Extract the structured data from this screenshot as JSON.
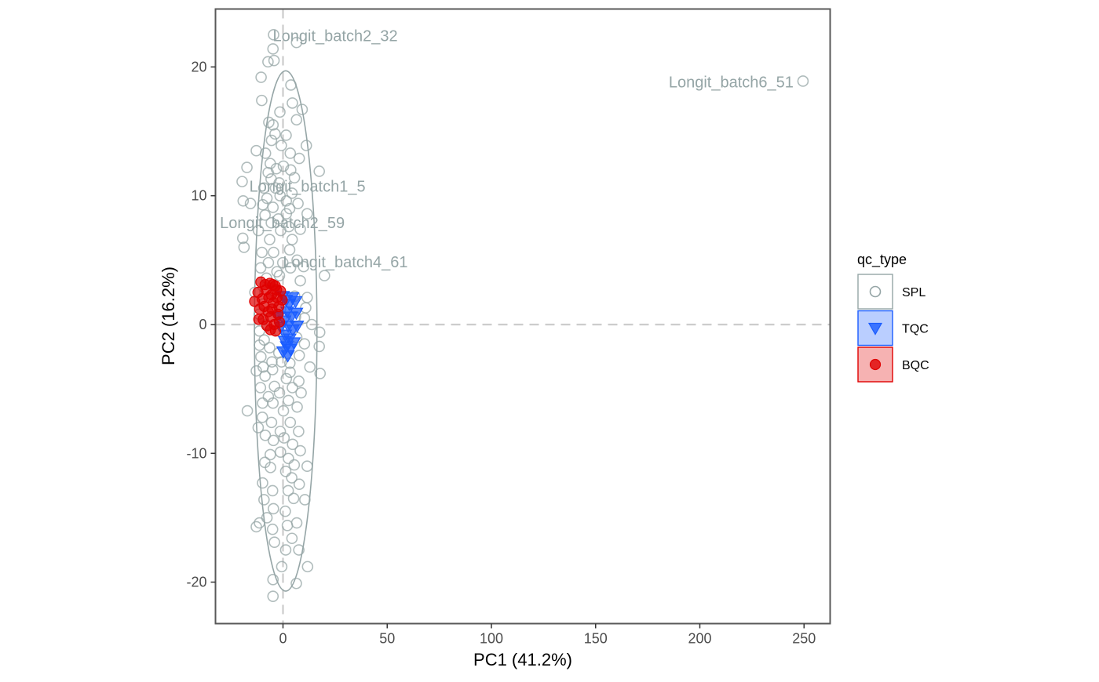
{
  "chart_data": {
    "type": "scatter",
    "title": "",
    "xlabel": "PC1 (41.2%)",
    "ylabel": "PC2 (16.2%)",
    "xlim": [
      -32.5,
      262
    ],
    "ylim": [
      -23.2,
      24.5
    ],
    "x_ticks": [
      0,
      50,
      100,
      150,
      200,
      250
    ],
    "y_ticks": [
      -20,
      -10,
      0,
      10,
      20
    ],
    "grid": false,
    "reference_lines": {
      "x": 0,
      "y": 0,
      "style": "dashed"
    },
    "legend": {
      "title": "qc_type",
      "position": "right",
      "entries": [
        {
          "label": "SPL",
          "color": "#95a5a6",
          "shape": "open-circle"
        },
        {
          "label": "TQC",
          "color": "#1a5cff",
          "shape": "triangle-down"
        },
        {
          "label": "BQC",
          "color": "#e00000",
          "shape": "filled-circle"
        }
      ]
    },
    "ellipse": {
      "group": "SPL",
      "center": [
        1.3,
        -0.5
      ],
      "semi_axes": [
        15,
        20.2
      ],
      "color": "#95a5a6"
    },
    "series": [
      {
        "name": "SPL",
        "color": "#95a5a6",
        "points": [
          [
            -4.5,
            22.5
          ],
          [
            6.5,
            21.9
          ],
          [
            -4.8,
            21.4
          ],
          [
            -7.2,
            20.4
          ],
          [
            -4.3,
            20.5
          ],
          [
            -10.5,
            19.2
          ],
          [
            3.8,
            18.6
          ],
          [
            249.5,
            18.9
          ],
          [
            -10.2,
            17.4
          ],
          [
            4.5,
            17.2
          ],
          [
            9.2,
            16.7
          ],
          [
            -1.5,
            16.5
          ],
          [
            -6.8,
            15.7
          ],
          [
            -4.8,
            15.5
          ],
          [
            6.5,
            15.9
          ],
          [
            -3.8,
            14.8
          ],
          [
            1.5,
            14.7
          ],
          [
            -5.5,
            14.3
          ],
          [
            -0.8,
            13.9
          ],
          [
            11.2,
            13.9
          ],
          [
            -12.8,
            13.5
          ],
          [
            -8.4,
            13.3
          ],
          [
            3.5,
            13.3
          ],
          [
            -6.1,
            12.5
          ],
          [
            7.8,
            12.9
          ],
          [
            -17.3,
            12.2
          ],
          [
            -7.1,
            11.8
          ],
          [
            -3.2,
            12.1
          ],
          [
            0.2,
            12.3
          ],
          [
            3.7,
            12.0
          ],
          [
            17.4,
            11.9
          ],
          [
            -5.7,
            11.3
          ],
          [
            -1.8,
            11.0
          ],
          [
            5.5,
            11.4
          ],
          [
            -19.6,
            11.1
          ],
          [
            -9.2,
            10.6
          ],
          [
            -3.6,
            10.6
          ],
          [
            4.3,
            10.2
          ],
          [
            -7.7,
            9.8
          ],
          [
            -1.4,
            10.0
          ],
          [
            1.6,
            9.6
          ],
          [
            -19.1,
            9.6
          ],
          [
            -15.6,
            9.4
          ],
          [
            -9.7,
            9.3
          ],
          [
            -4.8,
            9.1
          ],
          [
            3.2,
            9.0
          ],
          [
            7.2,
            9.4
          ],
          [
            -8.6,
            8.5
          ],
          [
            -2.2,
            8.2
          ],
          [
            1.6,
            8.6
          ],
          [
            11.6,
            8.6
          ],
          [
            -5.6,
            7.9
          ],
          [
            2.8,
            7.6
          ],
          [
            8.3,
            7.4
          ],
          [
            -11.8,
            7.3
          ],
          [
            -1.1,
            7.3
          ],
          [
            4.4,
            6.6
          ],
          [
            -19.3,
            6.7
          ],
          [
            -6.4,
            6.6
          ],
          [
            -18.7,
            6.0
          ],
          [
            -10.1,
            5.6
          ],
          [
            -4.5,
            5.6
          ],
          [
            3.2,
            5.8
          ],
          [
            -7.0,
            4.8
          ],
          [
            -0.1,
            4.8
          ],
          [
            6.8,
            5.0
          ],
          [
            -10.7,
            4.4
          ],
          [
            -2.9,
            4.1
          ],
          [
            3.6,
            4.4
          ],
          [
            9.9,
            4.5
          ],
          [
            -7.9,
            3.6
          ],
          [
            -1.7,
            3.8
          ],
          [
            19.9,
            3.8
          ],
          [
            8.3,
            3.4
          ],
          [
            -13.5,
            2.5
          ],
          [
            -4.3,
            2.6
          ],
          [
            5.6,
            2.2
          ],
          [
            11.6,
            2.1
          ],
          [
            -9.5,
            1.6
          ],
          [
            -1.2,
            1.2
          ],
          [
            10.9,
            1.3
          ],
          [
            -11.4,
            0.8
          ],
          [
            6.0,
            0.6
          ],
          [
            10.3,
            0.5
          ],
          [
            -7.9,
            0.0
          ],
          [
            13.8,
            0.0
          ],
          [
            -11.3,
            -0.5
          ],
          [
            -2.0,
            -0.5
          ],
          [
            17.6,
            -0.6
          ],
          [
            -9.0,
            -1.2
          ],
          [
            6.6,
            -1.0
          ],
          [
            -11.3,
            -1.6
          ],
          [
            10.3,
            -1.5
          ],
          [
            -6.4,
            -1.8
          ],
          [
            -2.0,
            -2.2
          ],
          [
            17.4,
            -1.7
          ],
          [
            -10.6,
            -2.5
          ],
          [
            7.8,
            -2.4
          ],
          [
            -5.3,
            -2.9
          ],
          [
            -0.7,
            -2.9
          ],
          [
            3.3,
            -3.0
          ],
          [
            -9.5,
            -3.3
          ],
          [
            12.9,
            -3.3
          ],
          [
            -12.8,
            -3.6
          ],
          [
            -5.0,
            -3.5
          ],
          [
            3.4,
            -3.7
          ],
          [
            17.8,
            -3.8
          ],
          [
            -8.6,
            -4.0
          ],
          [
            1.6,
            -4.2
          ],
          [
            7.6,
            -4.4
          ],
          [
            -4.1,
            -4.8
          ],
          [
            -10.8,
            -4.9
          ],
          [
            4.5,
            -4.9
          ],
          [
            -1.7,
            -5.3
          ],
          [
            8.7,
            -5.3
          ],
          [
            -7.0,
            -5.6
          ],
          [
            2.6,
            -5.9
          ],
          [
            -9.8,
            -6.1
          ],
          [
            -4.8,
            -6.1
          ],
          [
            6.8,
            -6.4
          ],
          [
            -17.1,
            -6.7
          ],
          [
            0.2,
            -6.7
          ],
          [
            -9.9,
            -7.2
          ],
          [
            -5.5,
            -7.6
          ],
          [
            3.5,
            -7.6
          ],
          [
            -11.9,
            -8.0
          ],
          [
            -1.3,
            -8.3
          ],
          [
            7.5,
            -8.3
          ],
          [
            -8.5,
            -8.6
          ],
          [
            0.5,
            -8.8
          ],
          [
            -4.6,
            -9.0
          ],
          [
            4.6,
            -9.3
          ],
          [
            -1.2,
            -9.9
          ],
          [
            8.3,
            -9.8
          ],
          [
            -6.1,
            -10.1
          ],
          [
            2.6,
            -10.4
          ],
          [
            -8.7,
            -10.7
          ],
          [
            5.4,
            -10.9
          ],
          [
            11.6,
            -11.0
          ],
          [
            -6.0,
            -11.1
          ],
          [
            1.3,
            -11.4
          ],
          [
            4.2,
            -11.9
          ],
          [
            -9.8,
            -12.3
          ],
          [
            7.8,
            -12.4
          ],
          [
            -5.0,
            -12.9
          ],
          [
            2.5,
            -12.9
          ],
          [
            -9.1,
            -13.6
          ],
          [
            5.1,
            -13.5
          ],
          [
            10.5,
            -13.6
          ],
          [
            -4.6,
            -14.3
          ],
          [
            1.1,
            -14.5
          ],
          [
            -7.7,
            -15.0
          ],
          [
            -11.3,
            -15.4
          ],
          [
            -12.8,
            -15.7
          ],
          [
            2.1,
            -15.6
          ],
          [
            6.6,
            -15.4
          ],
          [
            -5.0,
            -15.9
          ],
          [
            4.3,
            -16.6
          ],
          [
            -4.1,
            -16.9
          ],
          [
            1.3,
            -17.5
          ],
          [
            7.6,
            -17.5
          ],
          [
            11.8,
            -18.8
          ],
          [
            -0.6,
            -18.8
          ],
          [
            -4.8,
            -19.8
          ],
          [
            6.4,
            -20.1
          ],
          [
            -4.8,
            -21.1
          ]
        ]
      },
      {
        "name": "TQC",
        "color": "#1a5cff",
        "points": [
          [
            0.0,
            2.2
          ],
          [
            1.5,
            1.9
          ],
          [
            3.0,
            1.6
          ],
          [
            4.5,
            2.1
          ],
          [
            6.0,
            1.8
          ],
          [
            2.0,
            1.0
          ],
          [
            4.0,
            0.6
          ],
          [
            6.4,
            0.9
          ],
          [
            0.7,
            0.3
          ],
          [
            2.5,
            -0.1
          ],
          [
            4.7,
            -0.4
          ],
          [
            6.8,
            -0.1
          ],
          [
            1.1,
            -0.8
          ],
          [
            3.2,
            -1.1
          ],
          [
            5.2,
            -1.4
          ],
          [
            1.8,
            -1.7
          ],
          [
            3.6,
            -1.9
          ],
          [
            0.1,
            -2.1
          ],
          [
            2.3,
            -2.4
          ],
          [
            0.9,
            -1.3
          ],
          [
            -1.1,
            -0.2
          ],
          [
            -2.2,
            0.6
          ]
        ]
      },
      {
        "name": "BQC",
        "color": "#e00000",
        "points": [
          [
            -13.6,
            1.8
          ],
          [
            -12.0,
            2.5
          ],
          [
            -11.2,
            1.2
          ],
          [
            -10.0,
            2.0
          ],
          [
            -9.0,
            1.4
          ],
          [
            -8.2,
            2.7
          ],
          [
            -7.1,
            1.0
          ],
          [
            -6.3,
            3.2
          ],
          [
            -5.5,
            2.3
          ],
          [
            -4.6,
            1.7
          ],
          [
            -3.7,
            3.0
          ],
          [
            -2.9,
            2.1
          ],
          [
            -2.0,
            1.4
          ],
          [
            -1.2,
            2.6
          ],
          [
            -0.4,
            1.9
          ],
          [
            -9.5,
            0.4
          ],
          [
            -7.7,
            -0.1
          ],
          [
            -5.9,
            0.6
          ],
          [
            -4.2,
            0.0
          ],
          [
            -2.4,
            0.8
          ],
          [
            -11.6,
            0.4
          ],
          [
            -6.8,
            2.1
          ],
          [
            -4.9,
            3.1
          ],
          [
            -3.1,
            2.7
          ],
          [
            -8.6,
            3.1
          ],
          [
            -6.0,
            -0.4
          ],
          [
            -3.6,
            -0.5
          ],
          [
            -1.7,
            0.2
          ],
          [
            -10.6,
            3.3
          ],
          [
            -5.3,
            1.2
          ]
        ]
      }
    ],
    "annotations": [
      {
        "text": "Longit_batch2_32",
        "x": -4.5,
        "y": 22.5
      },
      {
        "text": "Longit_batch6_51",
        "x": 249.5,
        "y": 18.9
      },
      {
        "text": "Longit_batch1_5",
        "x": -2.2,
        "y": 10.8
      },
      {
        "text": "Longit_batch2_59",
        "x": -10.7,
        "y": 7.9
      },
      {
        "text": "Longit_batch4_61",
        "x": 6.0,
        "y": 5.0
      }
    ]
  }
}
